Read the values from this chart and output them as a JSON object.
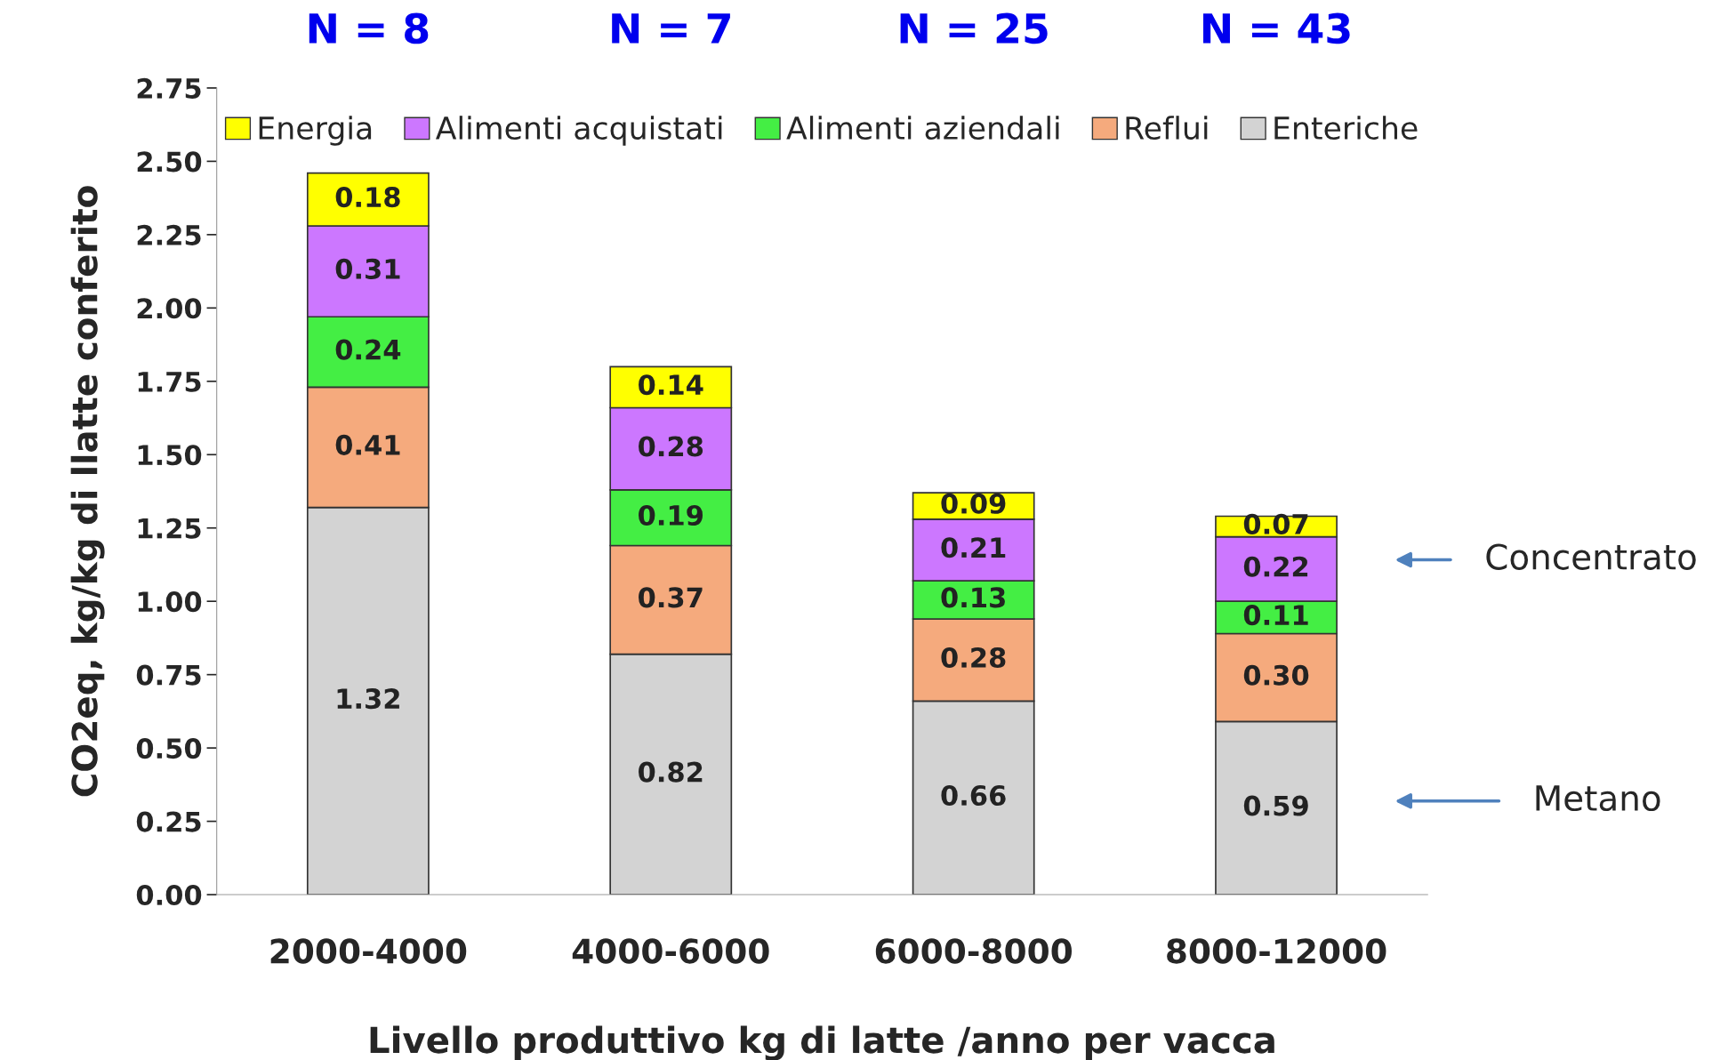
{
  "chart_data": {
    "type": "bar",
    "stacked": true,
    "categories": [
      "2000-4000",
      "4000-6000",
      "6000-8000",
      "8000-12000"
    ],
    "xlabel": "Livello produttivo kg di latte /anno per vacca",
    "ylabel": "CO2eq, kg/kg di llatte conferito",
    "ylim": [
      0,
      2.75
    ],
    "yticks": [
      {
        "value": 0,
        "label": "0.00"
      },
      {
        "value": 0.25,
        "label": "0.25"
      },
      {
        "value": 0.5,
        "label": "0.50"
      },
      {
        "value": 0.75,
        "label": "0.75"
      },
      {
        "value": 1,
        "label": "1.00"
      },
      {
        "value": 1.25,
        "label": "1.25"
      },
      {
        "value": 1.5,
        "label": "1.50"
      },
      {
        "value": 1.75,
        "label": "1.75"
      },
      {
        "value": 2,
        "label": "2.00"
      },
      {
        "value": 2.25,
        "label": "2.25"
      },
      {
        "value": 2.5,
        "label": "2.50"
      },
      {
        "value": 2.75,
        "label": "2.75"
      }
    ],
    "grid": false,
    "legend": "top",
    "series": [
      {
        "name": "Enteriche",
        "color": "#d3d3d3",
        "values": [
          1.32,
          0.82,
          0.66,
          0.59
        ],
        "value_labels": [
          "1.32",
          "0.82",
          "0.66",
          "0.59"
        ]
      },
      {
        "name": "Reflui",
        "color": "#f5aa7d",
        "values": [
          0.41,
          0.37,
          0.28,
          0.3
        ],
        "value_labels": [
          "0.41",
          "0.37",
          "0.28",
          "0.30"
        ]
      },
      {
        "name": "Alimenti aziendali",
        "color": "#44ee44",
        "values": [
          0.24,
          0.19,
          0.13,
          0.11
        ],
        "value_labels": [
          "0.24",
          "0.19",
          "0.13",
          "0.11"
        ]
      },
      {
        "name": "Alimenti acquistati",
        "color": "#cc77ff",
        "values": [
          0.31,
          0.28,
          0.21,
          0.22
        ],
        "value_labels": [
          "0.31",
          "0.28",
          "0.21",
          "0.22"
        ]
      },
      {
        "name": "Energia",
        "color": "#ffff00",
        "values": [
          0.18,
          0.14,
          0.09,
          0.07
        ],
        "value_labels": [
          "0.18",
          "0.14",
          "0.09",
          "0.07"
        ]
      }
    ],
    "annotations": [
      "N = 8",
      "N = 7",
      "N = 25",
      "N = 43",
      "Concentrato",
      "Metano"
    ]
  }
}
